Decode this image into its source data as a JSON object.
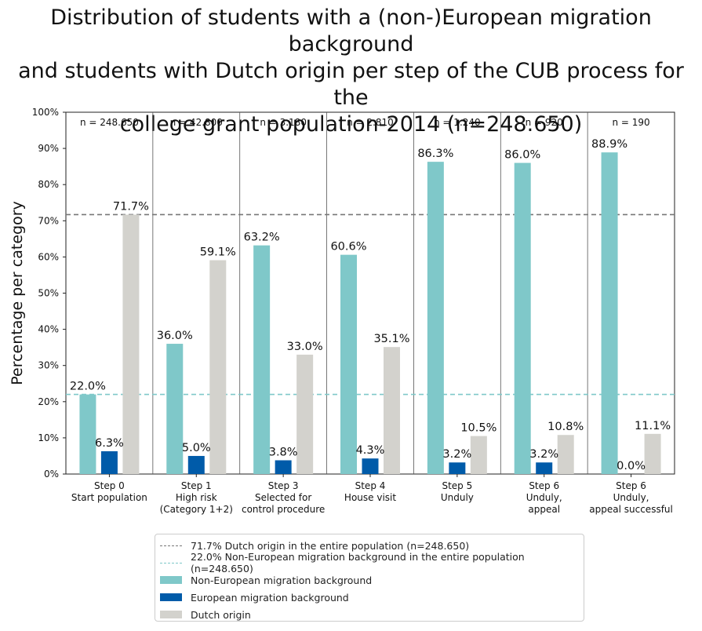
{
  "chart_data": {
    "type": "bar",
    "title": "Distribution of students with a (non-)European migration background\nand students with Dutch origin per step of the CUB process for the\ncollege grant population-2014 (n=248.650)",
    "ylabel": "Percentage per category",
    "ylim": [
      0,
      100
    ],
    "yticks": [
      "0%",
      "10%",
      "20%",
      "30%",
      "40%",
      "50%",
      "60%",
      "70%",
      "80%",
      "90%",
      "100%"
    ],
    "categories": [
      "Step 0\nStart population",
      "Step 1\nHigh risk\n(Category 1+2)",
      "Step 3\nSelected for\ncontrol procedure",
      "Step 4\nHouse visit",
      "Step 5\nUnduly",
      "Step 6\nUnduly,\nappeal",
      "Step 6\nUnduly,\nappeal successful"
    ],
    "n_labels": [
      "n = 248.650",
      "n = 42.800",
      "n = 3.180",
      "n = 2.810",
      "n = 1.240",
      "n = 920",
      "n = 190"
    ],
    "series": [
      {
        "name": "Non-European migration background",
        "color": "#7fc8c9",
        "values": [
          22.0,
          36.0,
          63.2,
          60.6,
          86.3,
          86.0,
          88.9
        ],
        "labels": [
          "22.0%",
          "36.0%",
          "63.2%",
          "60.6%",
          "86.3%",
          "86.0%",
          "88.9%"
        ]
      },
      {
        "name": "European migration background",
        "color": "#005ba9",
        "values": [
          6.3,
          5.0,
          3.8,
          4.3,
          3.2,
          3.2,
          0.0
        ],
        "labels": [
          "6.3%",
          "5.0%",
          "3.8%",
          "4.3%",
          "3.2%",
          "3.2%",
          "0.0%"
        ]
      },
      {
        "name": "Dutch origin",
        "color": "#d3d2cd",
        "values": [
          71.7,
          59.1,
          33.0,
          35.1,
          10.5,
          10.8,
          11.1
        ],
        "labels": [
          "71.7%",
          "59.1%",
          "33.0%",
          "35.1%",
          "10.5%",
          "10.8%",
          "11.1%"
        ]
      }
    ],
    "reference_lines": [
      {
        "label": "71.7% Dutch origin in the entire population (n=248.650)",
        "value": 71.7,
        "color": "#777777"
      },
      {
        "label": "22.0% Non-European migration background in the entire population (n=248.650)",
        "value": 22.0,
        "color": "#7fc8c9"
      }
    ],
    "grid": false,
    "legend_position": "bottom"
  }
}
